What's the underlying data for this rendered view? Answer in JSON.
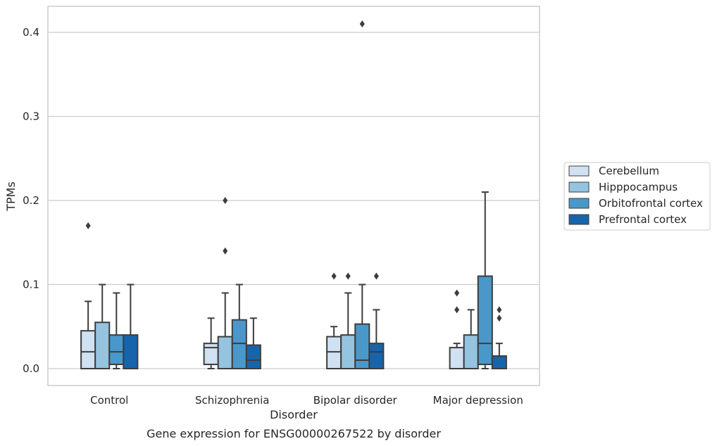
{
  "chart_data": {
    "type": "boxplot",
    "title": "",
    "caption": "Gene expression for ENSG00000267522 by disorder",
    "xlabel": "Disorder",
    "ylabel": "TPMs",
    "ylim": [
      -0.02,
      0.43
    ],
    "yticks": [
      "0.0",
      "0.1",
      "0.2",
      "0.3",
      "0.4"
    ],
    "ytick_values": [
      0.0,
      0.1,
      0.2,
      0.3,
      0.4
    ],
    "grid": "horizontal",
    "legend_position": "right",
    "categories": [
      "Control",
      "Schizophrenia",
      "Bipolar disorder",
      "Major depression"
    ],
    "series": [
      {
        "name": "Cerebellum",
        "color": "#d0e1f2",
        "boxes": [
          {
            "whisker_low": 0.0,
            "q1": 0.0,
            "median": 0.02,
            "q3": 0.045,
            "whisker_high": 0.08,
            "outliers": [
              0.17
            ]
          },
          {
            "whisker_low": 0.0,
            "q1": 0.005,
            "median": 0.025,
            "q3": 0.03,
            "whisker_high": 0.06,
            "outliers": []
          },
          {
            "whisker_low": 0.0,
            "q1": 0.0,
            "median": 0.02,
            "q3": 0.038,
            "whisker_high": 0.05,
            "outliers": [
              0.11
            ]
          },
          {
            "whisker_low": 0.0,
            "q1": 0.0,
            "median": 0.0,
            "q3": 0.025,
            "whisker_high": 0.03,
            "outliers": [
              0.07,
              0.09
            ]
          }
        ]
      },
      {
        "name": "Hipppocampus",
        "color": "#94c4df",
        "boxes": [
          {
            "whisker_low": 0.0,
            "q1": 0.0,
            "median": 0.0,
            "q3": 0.055,
            "whisker_high": 0.1,
            "outliers": []
          },
          {
            "whisker_low": 0.0,
            "q1": 0.0,
            "median": 0.0,
            "q3": 0.038,
            "whisker_high": 0.09,
            "outliers": [
              0.14,
              0.2
            ]
          },
          {
            "whisker_low": 0.0,
            "q1": 0.0,
            "median": 0.0,
            "q3": 0.04,
            "whisker_high": 0.09,
            "outliers": [
              0.11
            ]
          },
          {
            "whisker_low": 0.0,
            "q1": 0.0,
            "median": 0.0,
            "q3": 0.04,
            "whisker_high": 0.07,
            "outliers": []
          }
        ]
      },
      {
        "name": "Orbitofrontal cortex",
        "color": "#4a98c9",
        "boxes": [
          {
            "whisker_low": 0.0,
            "q1": 0.005,
            "median": 0.02,
            "q3": 0.04,
            "whisker_high": 0.09,
            "outliers": []
          },
          {
            "whisker_low": 0.0,
            "q1": 0.0,
            "median": 0.03,
            "q3": 0.058,
            "whisker_high": 0.1,
            "outliers": []
          },
          {
            "whisker_low": 0.0,
            "q1": 0.0,
            "median": 0.01,
            "q3": 0.053,
            "whisker_high": 0.1,
            "outliers": [
              0.41
            ]
          },
          {
            "whisker_low": 0.0,
            "q1": 0.005,
            "median": 0.03,
            "q3": 0.11,
            "whisker_high": 0.21,
            "outliers": []
          }
        ]
      },
      {
        "name": "Prefrontal cortex",
        "color": "#1764ab",
        "boxes": [
          {
            "whisker_low": 0.0,
            "q1": 0.0,
            "median": 0.0,
            "q3": 0.04,
            "whisker_high": 0.1,
            "outliers": []
          },
          {
            "whisker_low": 0.0,
            "q1": 0.0,
            "median": 0.01,
            "q3": 0.028,
            "whisker_high": 0.06,
            "outliers": []
          },
          {
            "whisker_low": 0.0,
            "q1": 0.0,
            "median": 0.02,
            "q3": 0.03,
            "whisker_high": 0.07,
            "outliers": [
              0.11
            ]
          },
          {
            "whisker_low": 0.0,
            "q1": 0.0,
            "median": 0.0,
            "q3": 0.015,
            "whisker_high": 0.03,
            "outliers": [
              0.06,
              0.07
            ]
          }
        ]
      }
    ]
  }
}
